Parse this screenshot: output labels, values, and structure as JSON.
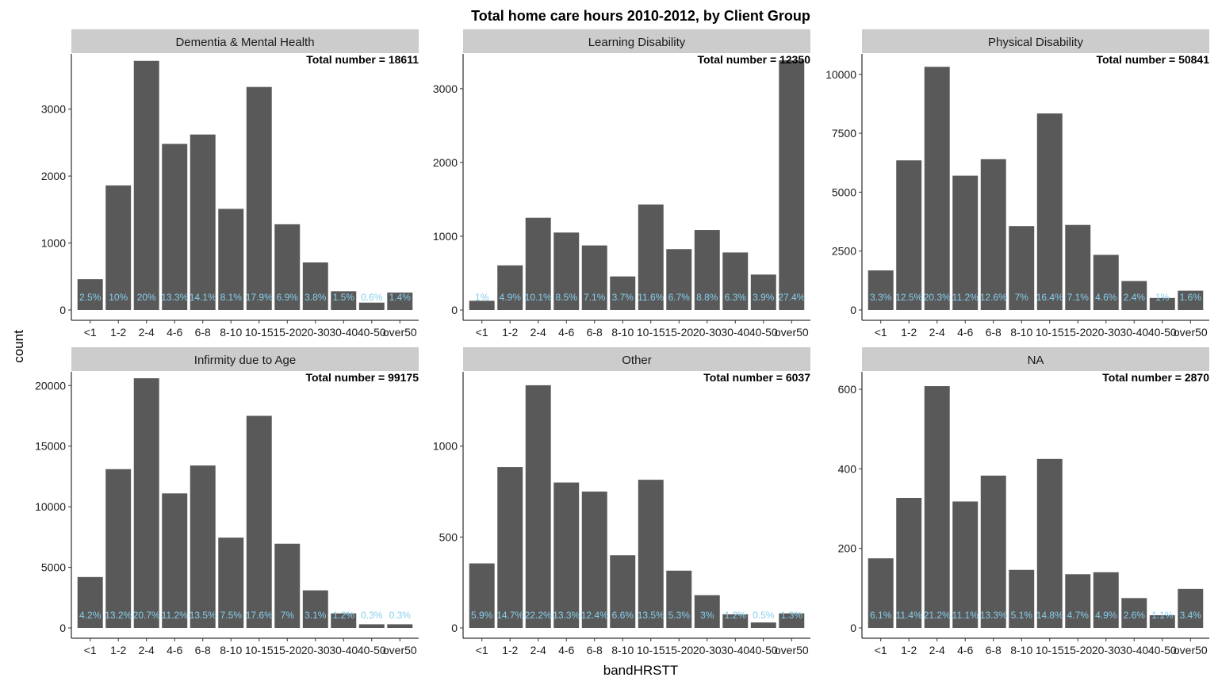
{
  "chart_data": {
    "type": "bar",
    "title": "Total home care hours 2010-2012, by Client Group",
    "xlabel": "bandHRSTT",
    "ylabel": "count",
    "categories": [
      "<1",
      "1-2",
      "2-4",
      "4-6",
      "6-8",
      "8-10",
      "10-15",
      "15-20",
      "20-30",
      "30-40",
      "40-50",
      "over50"
    ],
    "bar_color": "#595959",
    "label_color": "#87ceeb",
    "strip_color": "#cccccc",
    "grid": false,
    "layout": "facet 2x3",
    "panels": [
      {
        "name": "Dementia & Mental Health",
        "total_label": "Total number = 18611",
        "ylim": [
          0,
          3800
        ],
        "yticks": [
          0,
          1000,
          2000,
          3000
        ],
        "values": [
          460,
          1860,
          3720,
          2480,
          2620,
          1510,
          3330,
          1280,
          710,
          280,
          110,
          260
        ],
        "pct_labels": [
          "2.5%",
          "10%",
          "20%",
          "13.3%",
          "14.1%",
          "8.1%",
          "17.9%",
          "6.9%",
          "3.8%",
          "1.5%",
          "0.6%",
          "1.4%"
        ]
      },
      {
        "name": "Learning Disability",
        "total_label": "Total number = 12350",
        "ylim": [
          0,
          3450
        ],
        "yticks": [
          0,
          1000,
          2000,
          3000
        ],
        "values": [
          125,
          605,
          1250,
          1050,
          875,
          455,
          1430,
          825,
          1085,
          780,
          480,
          3385
        ],
        "pct_labels": [
          "1%",
          "4.9%",
          "10.1%",
          "8.5%",
          "7.1%",
          "3.7%",
          "11.6%",
          "6.7%",
          "8.8%",
          "6.3%",
          "3.9%",
          "27.4%"
        ]
      },
      {
        "name": "Physical Disability",
        "total_label": "Total number = 50841",
        "ylim": [
          0,
          10800
        ],
        "yticks": [
          0,
          2500,
          5000,
          7500,
          10000
        ],
        "values": [
          1680,
          6350,
          10320,
          5700,
          6400,
          3560,
          8340,
          3610,
          2340,
          1230,
          510,
          820
        ],
        "pct_labels": [
          "3.3%",
          "12.5%",
          "20.3%",
          "11.2%",
          "12.6%",
          "7%",
          "16.4%",
          "7.1%",
          "4.6%",
          "2.4%",
          "1%",
          "1.6%"
        ]
      },
      {
        "name": "Infirmity due to Age",
        "total_label": "Total number = 99175",
        "ylim": [
          0,
          21000
        ],
        "yticks": [
          0,
          5000,
          10000,
          15000,
          20000
        ],
        "values": [
          4200,
          13100,
          20600,
          11100,
          13400,
          7450,
          17500,
          6950,
          3100,
          1200,
          300,
          300
        ],
        "pct_labels": [
          "4.2%",
          "13.2%",
          "20.7%",
          "11.2%",
          "13.5%",
          "7.5%",
          "17.6%",
          "7%",
          "3.1%",
          "1.2%",
          "0.3%",
          "0.3%"
        ]
      },
      {
        "name": "Other",
        "total_label": "Total number = 6037",
        "ylim": [
          0,
          1400
        ],
        "yticks": [
          0,
          500,
          1000
        ],
        "values": [
          355,
          885,
          1335,
          800,
          750,
          400,
          815,
          315,
          180,
          75,
          30,
          80
        ],
        "pct_labels": [
          "5.9%",
          "14.7%",
          "22.2%",
          "13.3%",
          "12.4%",
          "6.6%",
          "13.5%",
          "5.3%",
          "3%",
          "1.2%",
          "0.5%",
          "1.3%"
        ]
      },
      {
        "name": "NA",
        "total_label": "Total number = 2870",
        "ylim": [
          0,
          640
        ],
        "yticks": [
          0,
          200,
          400,
          600
        ],
        "values": [
          175,
          327,
          608,
          318,
          383,
          146,
          425,
          135,
          140,
          75,
          32,
          98
        ],
        "pct_labels": [
          "6.1%",
          "11.4%",
          "21.2%",
          "11.1%",
          "13.3%",
          "5.1%",
          "14.8%",
          "4.7%",
          "4.9%",
          "2.6%",
          "1.1%",
          "3.4%"
        ]
      }
    ]
  }
}
